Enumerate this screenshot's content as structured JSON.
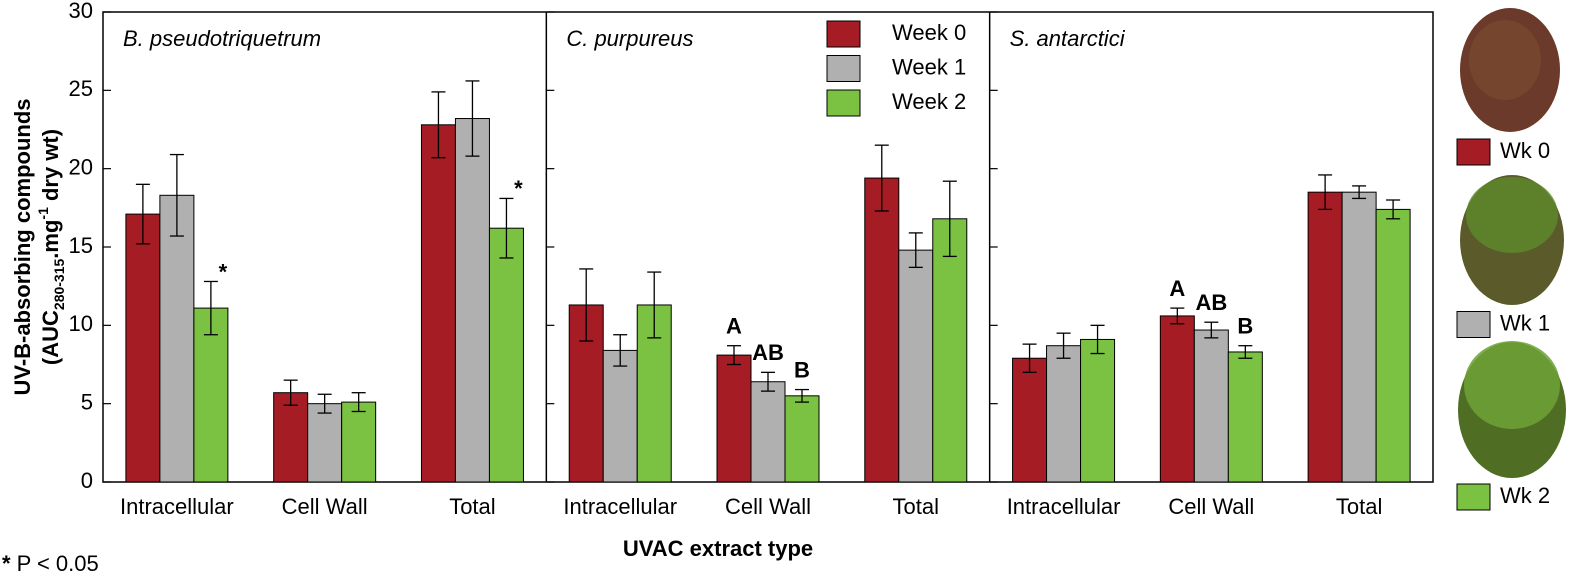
{
  "chart_data": {
    "type": "bar",
    "ylim": [
      0,
      30
    ],
    "yticks": [
      0,
      5,
      10,
      15,
      20,
      25,
      30
    ],
    "ylabel": {
      "line1": "UV-B-absorbing compounds",
      "line2": [
        "(AUC",
        "280-315",
        ".mg",
        "-1",
        " dry wt)"
      ]
    },
    "xlabel": "UVAC extract type",
    "footnote": [
      "*",
      "P < 0.05"
    ],
    "series": [
      {
        "name": "Week 0",
        "color": "#a51c24"
      },
      {
        "name": "Week 1",
        "color": "#b0b0b0"
      },
      {
        "name": "Week 2",
        "color": "#7cc242"
      }
    ],
    "photo_legend": [
      "Wk 0",
      "Wk 1",
      "Wk 2"
    ],
    "panels": [
      {
        "title": "B. pseudotriquetrum",
        "categories": [
          "Intracellular",
          "Cell Wall",
          "Total"
        ],
        "series": [
          {
            "values": [
              17.1,
              5.7,
              22.8
            ],
            "errors": [
              1.9,
              0.8,
              2.1
            ],
            "annotations": [
              null,
              null,
              null
            ]
          },
          {
            "values": [
              18.3,
              5.0,
              23.2
            ],
            "errors": [
              2.6,
              0.6,
              2.4
            ],
            "annotations": [
              null,
              null,
              null
            ]
          },
          {
            "values": [
              11.1,
              5.1,
              16.2
            ],
            "errors": [
              1.7,
              0.6,
              1.9
            ],
            "annotations": [
              "*",
              null,
              "*"
            ]
          }
        ]
      },
      {
        "title": "C. purpureus",
        "categories": [
          "Intracellular",
          "Cell Wall",
          "Total"
        ],
        "series": [
          {
            "values": [
              11.3,
              8.1,
              19.4
            ],
            "errors": [
              2.3,
              0.6,
              2.1
            ],
            "annotations": [
              null,
              "A",
              null
            ]
          },
          {
            "values": [
              8.4,
              6.4,
              14.8
            ],
            "errors": [
              1.0,
              0.6,
              1.1
            ],
            "annotations": [
              null,
              "AB",
              null
            ]
          },
          {
            "values": [
              11.3,
              5.5,
              16.8
            ],
            "errors": [
              2.1,
              0.4,
              2.4
            ],
            "annotations": [
              null,
              "B",
              null
            ]
          }
        ]
      },
      {
        "title": "S. antarctici",
        "categories": [
          "Intracellular",
          "Cell Wall",
          "Total"
        ],
        "series": [
          {
            "values": [
              7.9,
              10.6,
              18.5
            ],
            "errors": [
              0.9,
              0.5,
              1.1
            ],
            "annotations": [
              null,
              "A",
              null
            ]
          },
          {
            "values": [
              8.7,
              9.7,
              18.5
            ],
            "errors": [
              0.8,
              0.5,
              0.4
            ],
            "annotations": [
              null,
              "AB",
              null
            ]
          },
          {
            "values": [
              9.1,
              8.3,
              17.4
            ],
            "errors": [
              0.9,
              0.4,
              0.6
            ],
            "annotations": [
              null,
              "B",
              null
            ]
          }
        ]
      }
    ]
  }
}
